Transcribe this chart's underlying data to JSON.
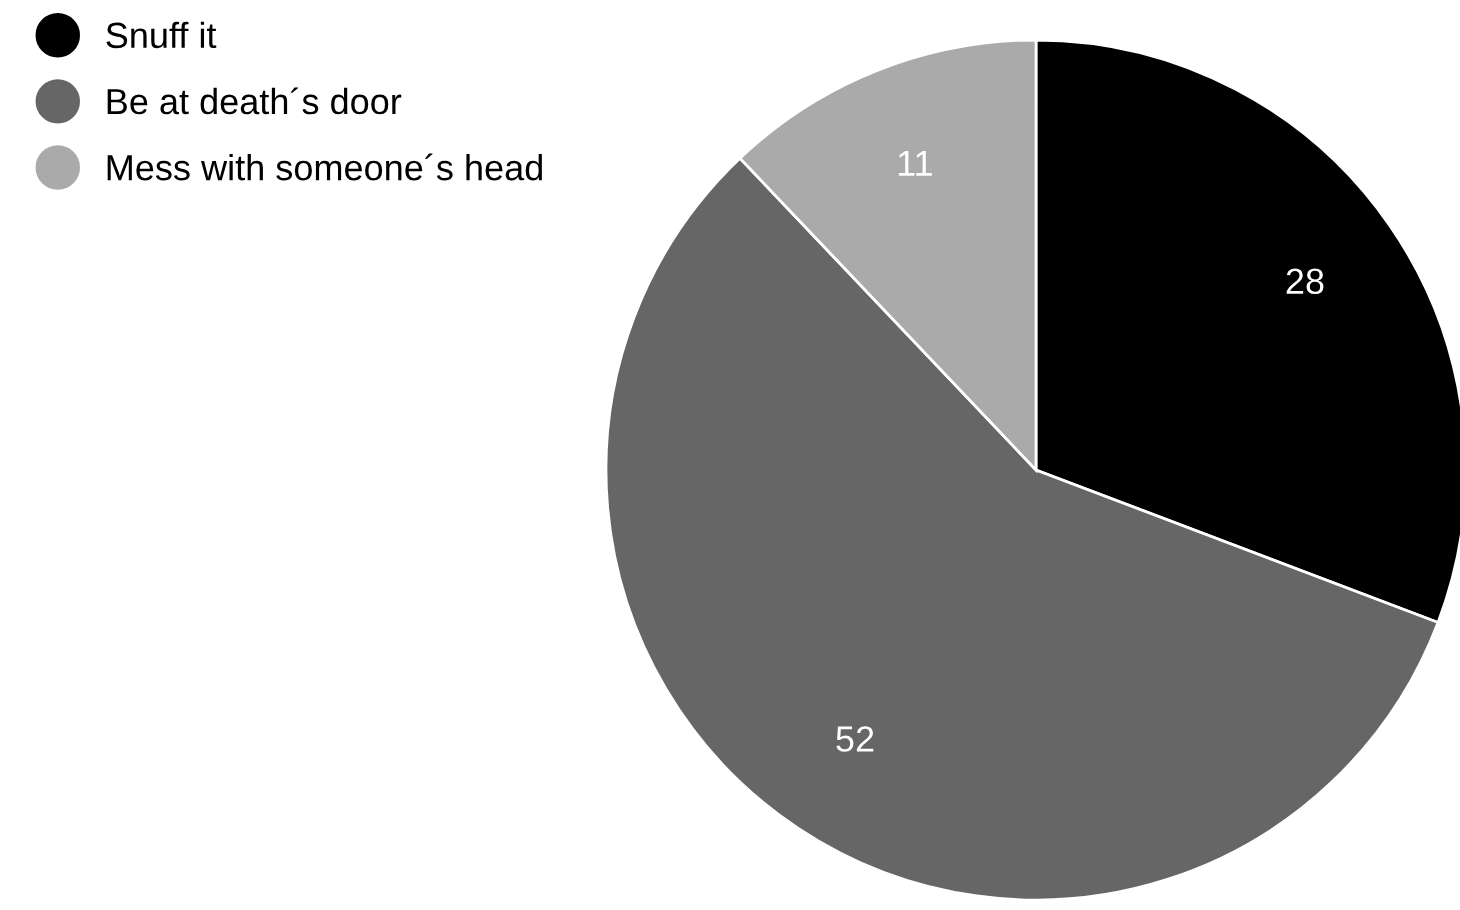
{
  "chart_data": {
    "type": "pie",
    "categories": [
      "Snuff it",
      "Be at death´s door",
      "Mess with someone´s head"
    ],
    "values": [
      28,
      52,
      11
    ],
    "colors": [
      "#000000",
      "#666666",
      "#aaaaaa"
    ],
    "data_labels": true,
    "legend": "top left"
  }
}
